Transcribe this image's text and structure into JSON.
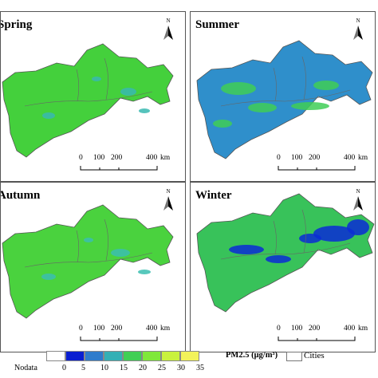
{
  "maps": [
    {
      "title": "Spring",
      "theme": "spring"
    },
    {
      "title": "Summer",
      "theme": "summer"
    },
    {
      "title": "Autumn",
      "theme": "autumn"
    },
    {
      "title": "Winter",
      "theme": "winter"
    }
  ],
  "north_label": "N",
  "scale": {
    "ticks": [
      "0",
      "100",
      "200",
      "400"
    ],
    "unit": "km"
  },
  "legend": {
    "nodata_label": "Nodata",
    "classes": [
      "0",
      "5",
      "10",
      "15",
      "20",
      "25",
      "30",
      "35"
    ],
    "colors": [
      "#ffffff",
      "#0a1fd1",
      "#2f7ccc",
      "#33b0b5",
      "#40cf55",
      "#7fe83a",
      "#c9f23e",
      "#f2f25a"
    ],
    "title": "PM2.5 (μg/m³)",
    "cities_label": "Cities"
  },
  "theme_colors": {
    "spring": {
      "base": "#44d03c",
      "patch": "#38b8b0"
    },
    "summer": {
      "base": "#2f8fcb",
      "patch": "#3fce56"
    },
    "autumn": {
      "base": "#4ad23e",
      "patch": "#3bbeb0"
    },
    "winter": {
      "base": "#38c25a",
      "patch": "#0a2bd6"
    }
  }
}
